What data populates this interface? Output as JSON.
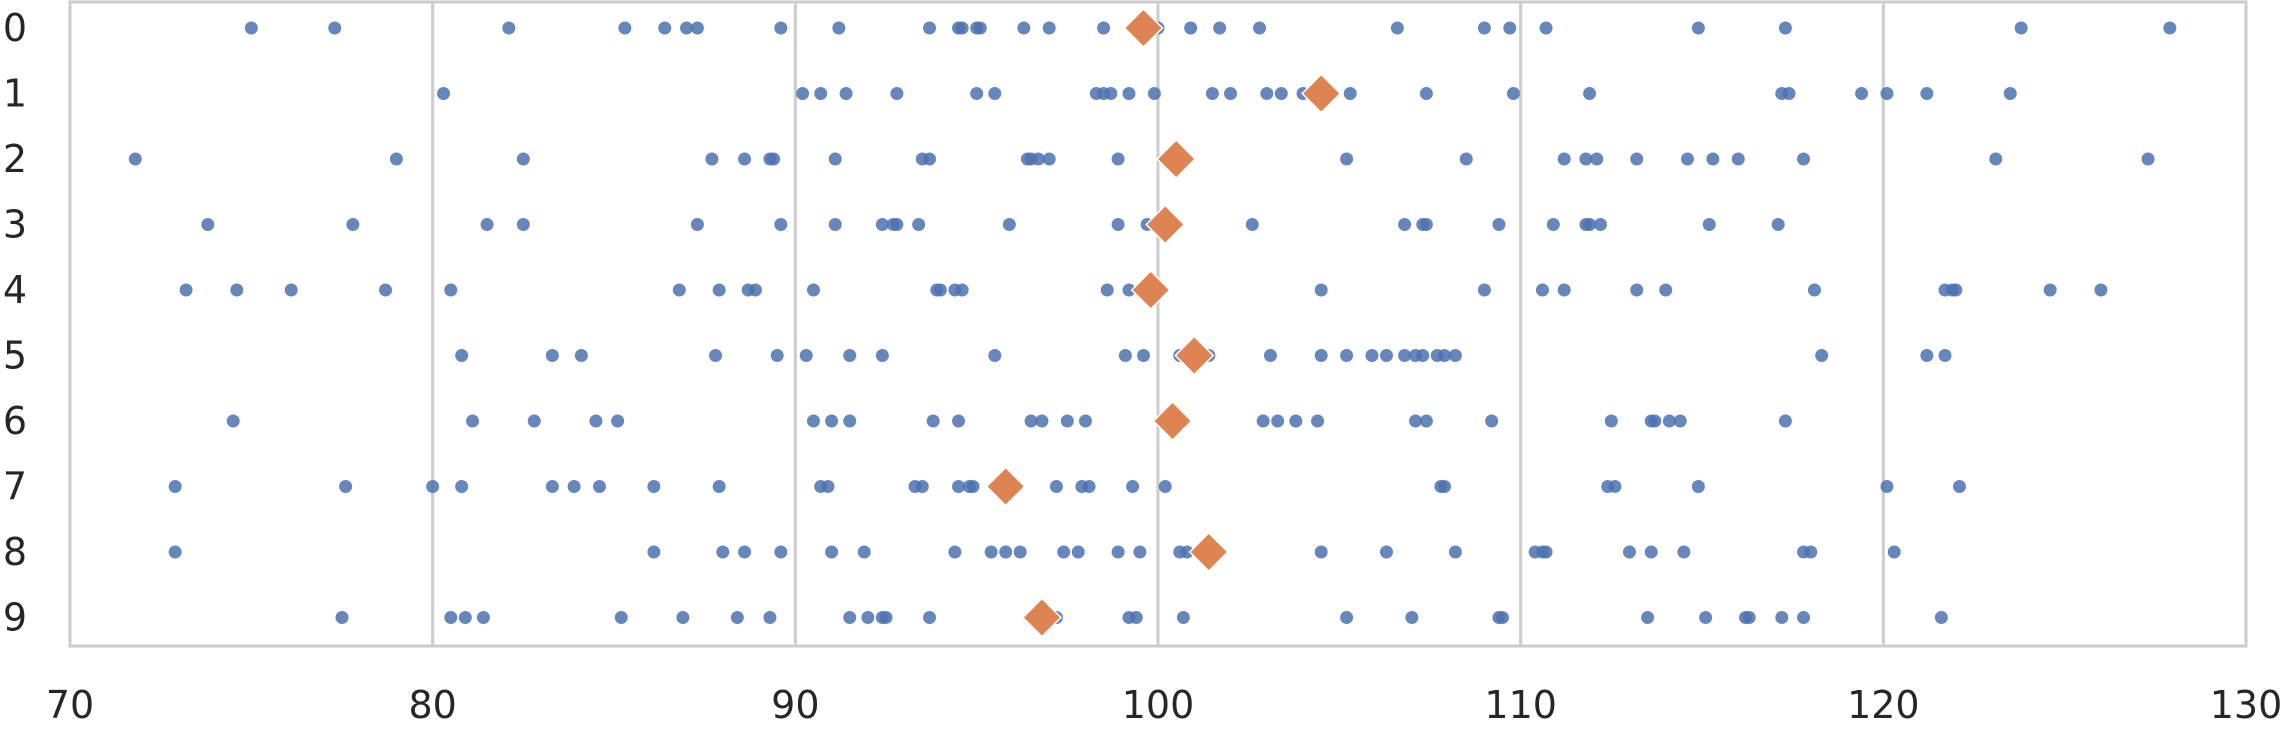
{
  "chart_data": {
    "type": "scatter",
    "title": "",
    "xlabel": "",
    "ylabel": "",
    "xlim": [
      70,
      130
    ],
    "x_ticks": [
      70,
      80,
      90,
      100,
      110,
      120,
      130
    ],
    "x_tick_labels": [
      "70",
      "80",
      "90",
      "100",
      "110",
      "120",
      "130"
    ],
    "categories": [
      "0",
      "1",
      "2",
      "3",
      "4",
      "5",
      "6",
      "7",
      "8",
      "9"
    ],
    "grid": "vertical",
    "colors": {
      "points": "#4c72b0",
      "means": "#dd8452",
      "grid": "#cccccc",
      "frame": "#cccccc",
      "text": "#262626"
    },
    "series": [
      {
        "marker": "circle",
        "rows": [
          [
            75.0,
            77.3,
            82.1,
            85.3,
            86.4,
            87.0,
            87.3,
            89.6,
            91.2,
            93.7,
            94.5,
            94.6,
            95.0,
            95.1,
            96.3,
            97.0,
            98.5,
            99.8,
            100.0,
            100.9,
            101.7,
            102.8,
            106.6,
            109.0,
            109.7,
            110.7,
            114.9,
            117.3,
            123.8,
            127.9
          ],
          [
            80.3,
            90.2,
            90.7,
            91.4,
            92.8,
            95.0,
            95.5,
            98.3,
            98.5,
            98.7,
            99.2,
            99.9,
            101.5,
            102.0,
            103.0,
            103.4,
            104.0,
            105.3,
            107.4,
            109.8,
            111.9,
            117.2,
            117.4,
            119.4,
            120.1,
            121.2,
            123.5
          ],
          [
            71.8,
            79.0,
            82.5,
            87.7,
            88.6,
            89.3,
            89.4,
            91.1,
            93.5,
            93.7,
            96.4,
            96.5,
            96.7,
            97.0,
            98.9,
            100.2,
            105.2,
            108.5,
            111.2,
            111.8,
            112.1,
            113.2,
            114.6,
            115.3,
            116.0,
            117.8,
            123.1,
            127.3
          ],
          [
            73.8,
            77.8,
            81.5,
            82.5,
            87.3,
            89.6,
            91.1,
            92.4,
            92.7,
            92.8,
            93.4,
            95.9,
            98.9,
            99.7,
            100.5,
            102.6,
            106.8,
            107.3,
            107.4,
            109.4,
            110.9,
            111.8,
            111.9,
            112.2,
            115.2,
            117.1
          ],
          [
            73.2,
            74.6,
            76.1,
            78.7,
            80.5,
            86.8,
            87.9,
            88.7,
            88.9,
            90.5,
            93.9,
            94.0,
            94.4,
            94.6,
            98.6,
            99.2,
            104.5,
            109.0,
            110.6,
            111.2,
            113.2,
            114.0,
            118.1,
            121.7,
            121.9,
            122.0,
            124.6,
            126.0
          ],
          [
            80.8,
            83.3,
            84.1,
            87.8,
            89.5,
            90.3,
            91.5,
            92.4,
            95.5,
            99.1,
            99.6,
            100.6,
            101.4,
            103.1,
            104.5,
            105.2,
            105.9,
            106.3,
            106.8,
            107.1,
            107.3,
            107.7,
            107.9,
            108.2,
            118.3,
            121.2,
            121.7
          ],
          [
            74.5,
            81.1,
            82.8,
            84.5,
            85.1,
            90.5,
            91.0,
            91.5,
            93.8,
            94.5,
            96.5,
            96.8,
            97.5,
            98.0,
            100.1,
            102.9,
            103.3,
            103.8,
            104.4,
            107.1,
            107.4,
            109.2,
            112.5,
            113.6,
            113.7,
            114.1,
            114.4,
            117.3
          ],
          [
            72.9,
            77.6,
            80.0,
            80.8,
            83.3,
            83.9,
            84.6,
            86.1,
            87.9,
            90.7,
            90.9,
            93.3,
            93.5,
            94.5,
            94.8,
            94.9,
            97.2,
            97.9,
            98.1,
            99.3,
            100.2,
            107.8,
            107.9,
            112.4,
            112.6,
            114.9,
            120.1,
            122.1
          ],
          [
            72.9,
            86.1,
            88.0,
            88.6,
            89.6,
            91.0,
            91.9,
            94.4,
            95.4,
            95.8,
            96.2,
            97.4,
            97.8,
            98.9,
            99.5,
            100.6,
            100.8,
            104.5,
            106.3,
            108.2,
            110.4,
            110.6,
            110.7,
            113.0,
            113.6,
            114.5,
            117.8,
            118.0,
            120.3
          ],
          [
            77.5,
            80.5,
            80.9,
            81.4,
            85.2,
            86.9,
            88.4,
            89.3,
            91.5,
            92.0,
            92.4,
            92.5,
            93.7,
            97.2,
            99.2,
            99.4,
            100.7,
            105.2,
            107.0,
            109.4,
            109.5,
            113.5,
            115.1,
            116.2,
            116.3,
            117.2,
            117.8,
            121.6
          ]
        ]
      },
      {
        "marker": "diamond",
        "values": [
          99.6,
          104.5,
          100.5,
          100.2,
          99.8,
          101.0,
          100.4,
          95.8,
          101.4,
          96.8
        ]
      }
    ]
  }
}
